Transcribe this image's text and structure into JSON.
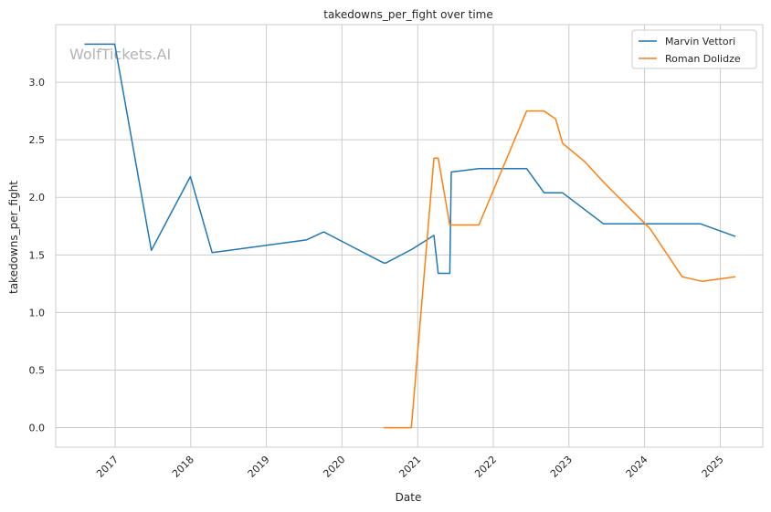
{
  "chart_data": {
    "type": "line",
    "title": "takedowns_per_fight over time",
    "xlabel": "Date",
    "ylabel": "takedowns_per_fight",
    "watermark": "WolfTickets.AI",
    "x_ticks": [
      "2017",
      "2018",
      "2019",
      "2020",
      "2021",
      "2022",
      "2023",
      "2024",
      "2025"
    ],
    "y_ticks": [
      "0.0",
      "0.5",
      "1.0",
      "1.5",
      "2.0",
      "2.5",
      "3.0"
    ],
    "xlim": [
      "2016-03-20",
      "2025-07-25"
    ],
    "ylim": [
      -0.17,
      3.5
    ],
    "grid": true,
    "legend_position": "top-right",
    "series": [
      {
        "name": "Marvin Vettori",
        "color": "#1f77b4",
        "points": [
          [
            "2016-08-06",
            3.33
          ],
          [
            "2016-12-30",
            3.33
          ],
          [
            "2017-06-25",
            1.54
          ],
          [
            "2017-12-30",
            2.18
          ],
          [
            "2018-04-14",
            1.52
          ],
          [
            "2019-07-13",
            1.63
          ],
          [
            "2019-10-05",
            1.7
          ],
          [
            "2020-07-20",
            1.43
          ],
          [
            "2020-08-01",
            1.43
          ],
          [
            "2020-12-05",
            1.55
          ],
          [
            "2021-03-20",
            1.67
          ],
          [
            "2021-04-10",
            1.34
          ],
          [
            "2021-06-05",
            1.34
          ],
          [
            "2021-06-12",
            2.22
          ],
          [
            "2021-10-23",
            2.25
          ],
          [
            "2022-06-11",
            2.25
          ],
          [
            "2022-09-03",
            2.04
          ],
          [
            "2022-12-01",
            2.04
          ],
          [
            "2023-06-17",
            1.77
          ],
          [
            "2024-09-28",
            1.77
          ],
          [
            "2025-03-15",
            1.66
          ]
        ]
      },
      {
        "name": "Roman Dolidze",
        "color": "#ff7f0e",
        "points": [
          [
            "2020-07-20",
            0.0
          ],
          [
            "2020-12-01",
            0.0
          ],
          [
            "2021-03-20",
            2.34
          ],
          [
            "2021-04-10",
            2.34
          ],
          [
            "2021-06-05",
            1.76
          ],
          [
            "2021-10-23",
            1.76
          ],
          [
            "2022-06-11",
            2.75
          ],
          [
            "2022-09-03",
            2.75
          ],
          [
            "2022-10-29",
            2.68
          ],
          [
            "2022-12-01",
            2.47
          ],
          [
            "2023-03-18",
            2.31
          ],
          [
            "2023-06-24",
            2.12
          ],
          [
            "2024-01-27",
            1.73
          ],
          [
            "2024-07-01",
            1.31
          ],
          [
            "2024-10-05",
            1.27
          ],
          [
            "2025-03-15",
            1.31
          ]
        ]
      }
    ]
  }
}
